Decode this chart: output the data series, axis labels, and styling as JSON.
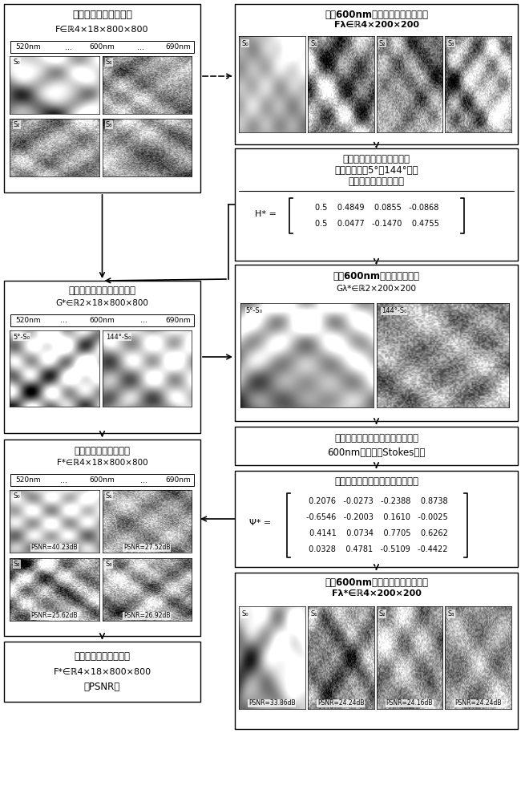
{
  "bg_color": "#ffffff",
  "block1_title": "待测高光谱全偏振图像",
  "block1_formula_main": "F∈ℝ",
  "block1_formula_sup": "4×18×800×800",
  "block1_wavelengths": [
    "520nm",
    "...",
    "600nm",
    "...",
    "690nm"
  ],
  "block2_title": "已知600nm波段的全偏振局部图像",
  "block2_title2": "Fλ∈ℝ",
  "block2_sup": "4×200×200",
  "block3_line1": "偏振调制：四分之一波片快",
  "block3_line2": "轴角度依次为5°和144°，线",
  "block3_line3": "偏振片透光轴始终水平",
  "block3_mat_label": "H* =",
  "block3_row1": "0.5    0.4849    0.0855   -0.0868",
  "block3_row2": "0.5    0.0477   -0.1470    0.4755",
  "block4_title": "获得高光谱全偏振压缩图像",
  "block4_formula_main": "G*∈ℝ",
  "block4_formula_sup": "2×18×800×800",
  "block4_wavelengths": [
    "520nm",
    "...",
    "600nm",
    "...",
    "690nm"
  ],
  "block4_img_labels": [
    "5°-S₀",
    "144°-S₀"
  ],
  "block5_title": "获得600nm全偏振压缩图像",
  "block5_formula_main": "Gλ*∈ℝ",
  "block5_formula_sup": "2×200×200",
  "block5_img_labels": [
    "5°-S₀",
    "144°-S₀"
  ],
  "block6_line1": "粒子群算法迭代优化稀疏基并重构",
  "block6_line2": "600nm局部图像Stokes参量",
  "block7_title": "获得该组偏振调制的偏振维稀疏基",
  "block7_mat_label": "Ψ* =",
  "block7_row1": " 0.2076   -0.0273   -0.2388    0.8738",
  "block7_row2": "-0.6546   -0.2003    0.1610   -0.0025",
  "block7_row3": " 0.4141    0.0734    0.7705    0.6262",
  "block7_row4": " 0.0328    0.4781   -0.5109   -0.4422",
  "block8_title": "重构高光谱全偏振图像",
  "block8_formula_main": "F*∈ℝ",
  "block8_formula_sup": "4×18×800×800",
  "block8_wavelengths": [
    "520nm",
    "...",
    "600nm",
    "...",
    "690nm"
  ],
  "block8_psnr": [
    "PSNR=40.23dB",
    "PSNR=27.52dB",
    "PSNR=25.62dB",
    "PSNR=26.92dB"
  ],
  "block9_title": "重构600nm波段的全偏振局部图像",
  "block9_title2": "Fλ*∈ℝ",
  "block9_sup": "4×200×200",
  "block9_psnr": [
    "PSNR=33.86dB",
    "PSNR=24.24dB",
    "PSNR=24.16dB",
    "PSNR=24.24dB"
  ],
  "block10_line1": "重构高光谱全偏振图像",
  "block10_line2": "F*∈ℝ",
  "block10_sup": "4×18×800×800",
  "block10_line3": "的PSNR值",
  "stokes_labels": [
    "S₀",
    "S₁",
    "S₂",
    "S₃"
  ]
}
